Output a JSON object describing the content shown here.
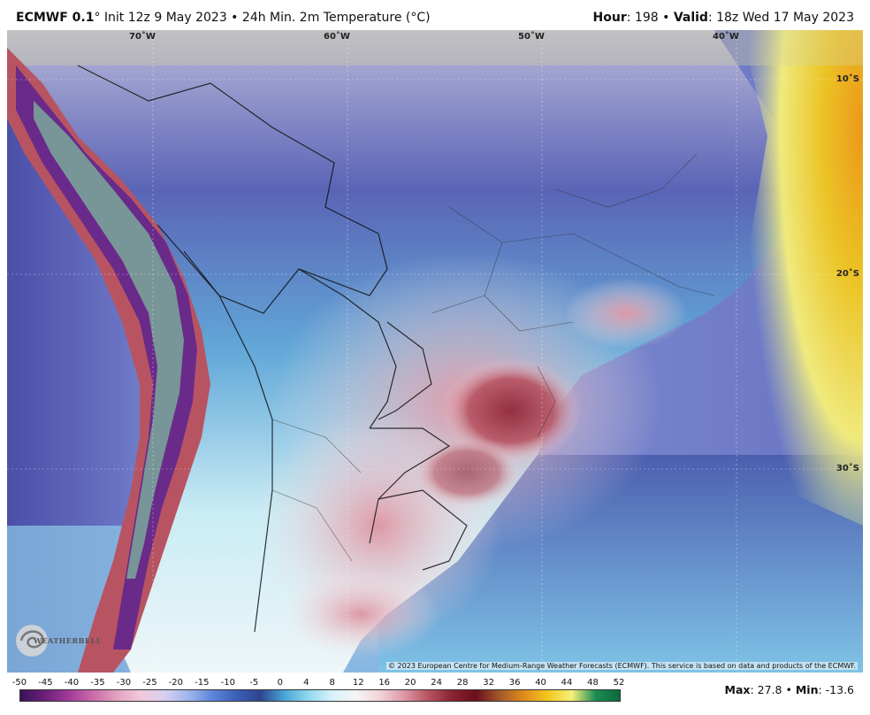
{
  "header": {
    "model": "ECMWF 0.1",
    "init_text": "° Init 12z 9 May 2023",
    "bullet": " • ",
    "product": "24h Min. 2m Temperature (°C)",
    "hour_label": "Hour",
    "hour_value": ": 198",
    "valid_label": "Valid",
    "valid_value": ": 18z Wed 17 May 2023"
  },
  "map": {
    "longitude_labels": [
      "70˚W",
      "60˚W",
      "50˚W",
      "40˚W"
    ],
    "latitude_labels": [
      "10˚S",
      "20˚S",
      "30˚S"
    ],
    "credit": "© 2023 European Centre for Medium-Range Weather Forecasts (ECMWF). This service is based on data and products of the ECMWF.",
    "logo_text": "WEATHERBELL"
  },
  "colorbar": {
    "ticks": [
      "-50",
      "-45",
      "-40",
      "-35",
      "-30",
      "-25",
      "-20",
      "-15",
      "-10",
      "-5",
      "0",
      "4",
      "8",
      "12",
      "16",
      "20",
      "24",
      "28",
      "32",
      "36",
      "40",
      "44",
      "48",
      "52"
    ],
    "colors": [
      "#3a1258",
      "#6b1f7a",
      "#a0399a",
      "#c86aa8",
      "#e3a0c0",
      "#f2c8da",
      "#d8d0f0",
      "#9fb7ee",
      "#5d86d8",
      "#3d5fb8",
      "#2f4590",
      "#48a4d6",
      "#8fd8ee",
      "#d6f3fa",
      "#f5f5f5",
      "#f2d3d8",
      "#dd98a6",
      "#b85462",
      "#8c2232",
      "#6a0f1c",
      "#a25a2a",
      "#e08a1c",
      "#f2c81e",
      "#f6f07a",
      "#1b8a54",
      "#0e6a3a"
    ]
  },
  "stats": {
    "max_label": "Max",
    "max_value": ": 27.8",
    "min_label": "Min",
    "min_value": ": -13.6"
  }
}
